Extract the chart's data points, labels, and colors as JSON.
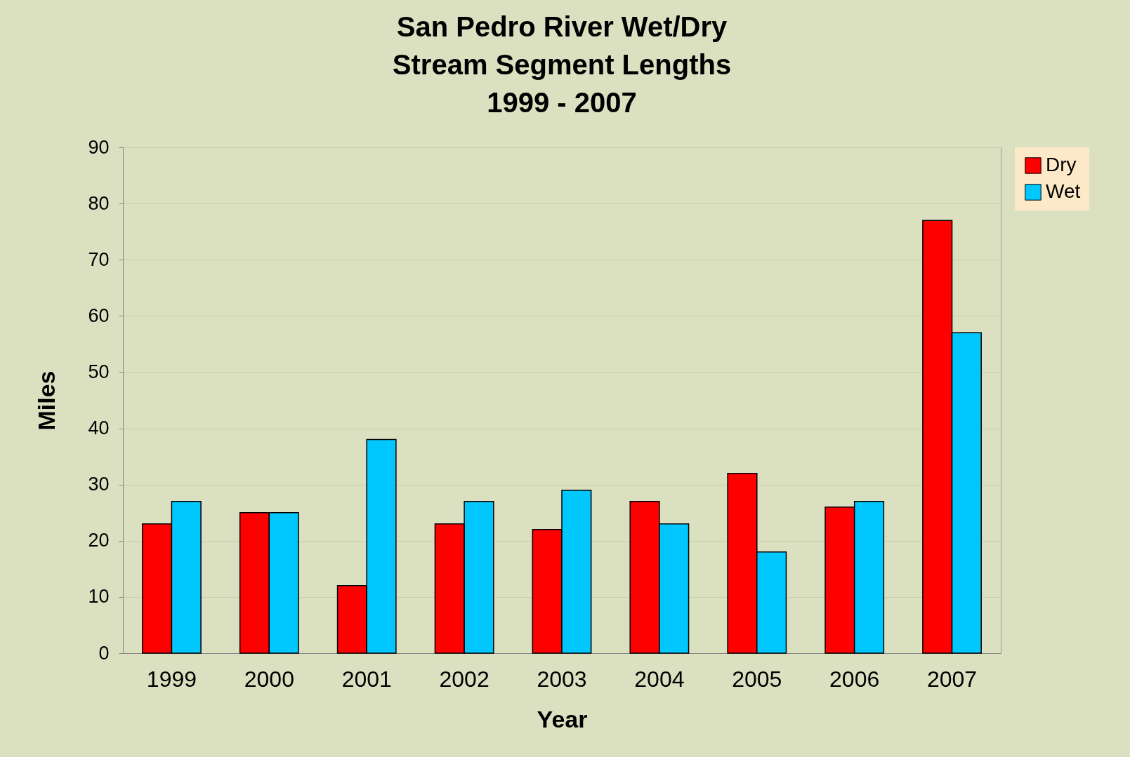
{
  "chart_data": {
    "type": "bar",
    "title": "San Pedro River Wet/Dry\nStream Segment Lengths\n1999 - 2007",
    "xlabel": "Year",
    "ylabel": "Miles",
    "categories": [
      "1999",
      "2000",
      "2001",
      "2002",
      "2003",
      "2004",
      "2005",
      "2006",
      "2007"
    ],
    "series": [
      {
        "name": "Dry",
        "color": "#ff0000",
        "values": [
          23,
          25,
          12,
          23,
          22,
          27,
          32,
          26,
          77
        ]
      },
      {
        "name": "Wet",
        "color": "#00c8ff",
        "values": [
          27,
          25,
          38,
          27,
          29,
          23,
          18,
          27,
          57
        ]
      }
    ],
    "ylim": [
      0,
      90
    ],
    "yticks": [
      0,
      10,
      20,
      30,
      40,
      50,
      60,
      70,
      80,
      90
    ],
    "grid": "y",
    "legend": "right"
  }
}
